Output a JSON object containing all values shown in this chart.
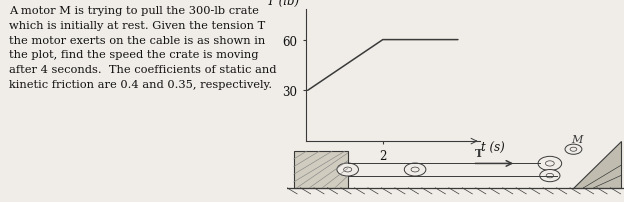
{
  "text_block": "A motor M is trying to pull the 300-lb crate\nwhich is initially at rest. Given the tension T\nthe motor exerts on the cable is as shown in\nthe plot, find the speed the crate is moving\nafter 4 seconds.  The coefficients of static and\nkinetic friction are 0.4 and 0.35, respectively.",
  "plot_ylabel": "T (lb)",
  "plot_xlabel": "t (s)",
  "yticks": [
    30,
    60
  ],
  "xtick": 2,
  "t_values": [
    0,
    2,
    4
  ],
  "T_values": [
    30,
    60,
    60
  ],
  "bg_color": "#f0ede8",
  "line_color": "#3a3a3a",
  "text_color": "#111111",
  "fig_bg": "#f0ede8",
  "font_size_text": 8.2,
  "font_size_axis": 8.5
}
